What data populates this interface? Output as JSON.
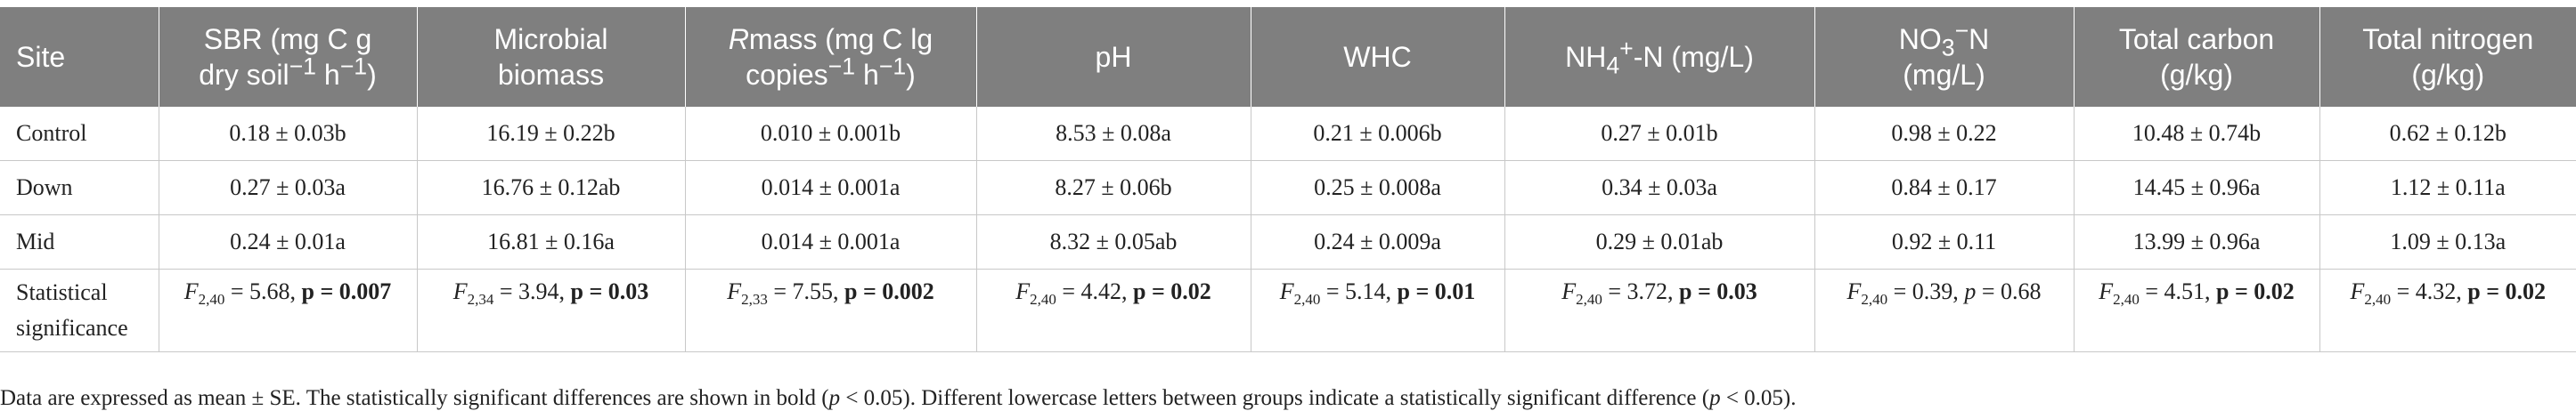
{
  "table": {
    "headers": {
      "site": "Site",
      "sbr_a": "SBR (mg C g",
      "sbr_b": "dry soil",
      "sbr_sup": "−1",
      "sbr_c": " h",
      "sbr_sup2": "−1",
      "sbr_d": ")",
      "mb_a": "Microbial",
      "mb_b": "biomass",
      "rmass_r": "R",
      "rmass_a": "mass (mg C lg",
      "rmass_b": "copies",
      "rmass_sup": "−1",
      "rmass_c": " h",
      "rmass_sup2": "−1",
      "rmass_d": ")",
      "ph": "pH",
      "whc": "WHC",
      "nh4_a": "NH",
      "nh4_sub": "4",
      "nh4_sup": "+",
      "nh4_b": "-N (mg/L)",
      "no3_a": "NO",
      "no3_sub": "3",
      "no3_sup": "−",
      "no3_b": "N",
      "no3_c": "(mg/L)",
      "tc_a": "Total carbon",
      "tc_b": "(g/kg)",
      "tn_a": "Total nitrogen",
      "tn_b": "(g/kg)"
    },
    "rows": [
      {
        "site": "Control",
        "sbr": "0.18 ± 0.03b",
        "mb": "16.19 ± 0.22b",
        "rmass": "0.010 ± 0.001b",
        "ph": "8.53 ± 0.08a",
        "whc": "0.21 ± 0.006b",
        "nh4": "0.27 ± 0.01b",
        "no3": "0.98 ± 0.22",
        "tc": "10.48 ± 0.74b",
        "tn": "0.62 ± 0.12b"
      },
      {
        "site": "Down",
        "sbr": "0.27 ± 0.03a",
        "mb": "16.76 ± 0.12ab",
        "rmass": "0.014 ± 0.001a",
        "ph": "8.27 ± 0.06b",
        "whc": "0.25 ± 0.008a",
        "nh4": "0.34 ± 0.03a",
        "no3": "0.84 ± 0.17",
        "tc": "14.45 ± 0.96a",
        "tn": "1.12 ± 0.11a"
      },
      {
        "site": "Mid",
        "sbr": "0.24 ± 0.01a",
        "mb": "16.81 ± 0.16a",
        "rmass": "0.014 ± 0.001a",
        "ph": "8.32 ± 0.05ab",
        "whc": "0.24 ± 0.009a",
        "nh4": "0.29 ± 0.01ab",
        "no3": "0.92 ± 0.11",
        "tc": "13.99 ± 0.96a",
        "tn": "1.09 ± 0.13a"
      }
    ],
    "significance": {
      "label_a": "Statistical",
      "label_b": "significance",
      "f": "F",
      "p": "p",
      "cells": [
        {
          "df": "2,40",
          "fval": " = 5.68, ",
          "pval": " = 0.007",
          "bold": true
        },
        {
          "df": "2,34",
          "fval": " = 3.94, ",
          "pval": " = 0.03",
          "bold": true
        },
        {
          "df": "2,33",
          "fval": " = 7.55, ",
          "pval": " = 0.002",
          "bold": true
        },
        {
          "df": "2,40",
          "fval": " = 4.42, ",
          "pval": " = 0.02",
          "bold": true
        },
        {
          "df": "2,40",
          "fval": " = 5.14, ",
          "pval": " = 0.01",
          "bold": true
        },
        {
          "df": "2,40",
          "fval": " = 3.72, ",
          "pval": " = 0.03",
          "bold": true
        },
        {
          "df": "2,40",
          "fval": " = 0.39, ",
          "pval": " = 0.68",
          "bold": false
        },
        {
          "df": "2,40",
          "fval": " = 4.51, ",
          "pval": " = 0.02",
          "bold": true
        },
        {
          "df": "2,40",
          "fval": " = 4.32, ",
          "pval": " = 0.02",
          "bold": true
        }
      ]
    }
  },
  "footnote": {
    "a": "Data are expressed as mean ± SE. The statistically significant differences are shown in bold (",
    "p1": "p",
    "b": " < 0.05). Different lowercase letters between groups indicate a statistically significant difference (",
    "p2": "p",
    "c": " < 0.05)."
  }
}
